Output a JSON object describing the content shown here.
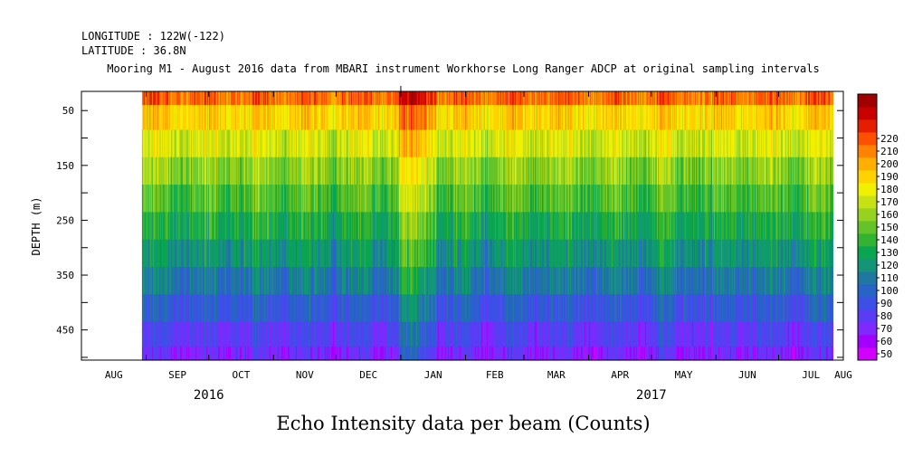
{
  "header": {
    "longitude": "LONGITUDE : 122W(-122)",
    "latitude": "LATITUDE : 36.8N",
    "title": "Mooring M1 - August 2016 data from MBARI instrument Workhorse Long Ranger ADCP at original sampling intervals"
  },
  "caption": "Echo Intensity data per beam (Counts)",
  "chart_data": {
    "type": "heatmap",
    "ylabel": "DEPTH (m)",
    "x_months": [
      "AUG",
      "SEP",
      "OCT",
      "NOV",
      "DEC",
      "JAN",
      "FEB",
      "MAR",
      "APR",
      "MAY",
      "JUN",
      "JUL",
      "AUG"
    ],
    "x_years": [
      {
        "label": "2016",
        "month_index": 2
      },
      {
        "label": "2017",
        "month_index": 9
      }
    ],
    "x_range": [
      "2016-08-01",
      "2017-08-01"
    ],
    "data_start": "2016-08-30",
    "data_end": "2017-07-27",
    "y_ticks": [
      50,
      150,
      250,
      350,
      450
    ],
    "ylim": [
      505,
      15
    ],
    "colorbar": {
      "min": 50,
      "max": 220,
      "step": 10,
      "labels": [
        "50",
        "60",
        "70",
        "80",
        "90",
        "100",
        "110",
        "120",
        "130",
        "140",
        "150",
        "160",
        "170",
        "180",
        "190",
        "200",
        "210",
        "220"
      ],
      "colors": [
        "#d100ff",
        "#a400ff",
        "#7f28ff",
        "#5a3cf5",
        "#3c50e6",
        "#2864c8",
        "#1e78a0",
        "#139678",
        "#0aa550",
        "#32b432",
        "#64c328",
        "#96d21e",
        "#c8e114",
        "#f0f000",
        "#ffd200",
        "#ffaf00",
        "#ff8200",
        "#ff5000",
        "#e61e00",
        "#c80000",
        "#a00000"
      ]
    },
    "rows_top_to_bottom": [
      {
        "depth": 20,
        "value": 210
      },
      {
        "depth": 60,
        "value": 185
      },
      {
        "depth": 110,
        "value": 168
      },
      {
        "depth": 160,
        "value": 152
      },
      {
        "depth": 210,
        "value": 140
      },
      {
        "depth": 260,
        "value": 128
      },
      {
        "depth": 310,
        "value": 116
      },
      {
        "depth": 360,
        "value": 104
      },
      {
        "depth": 410,
        "value": 90
      },
      {
        "depth": 460,
        "value": 76
      },
      {
        "depth": 500,
        "value": 66
      }
    ],
    "events": [
      {
        "date": "2016-12-31",
        "days": 18,
        "value_shift": 20
      },
      {
        "date": "2017-05-28",
        "days": 2,
        "value_shift": -20
      }
    ]
  }
}
